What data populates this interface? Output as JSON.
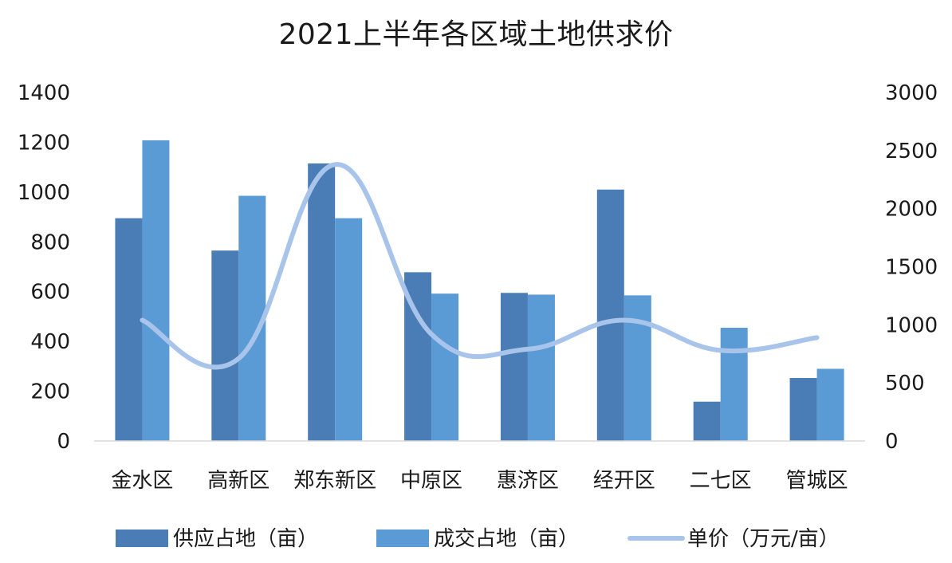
{
  "chart_data": {
    "type": "bar",
    "title": "2021上半年各区域土地供求价",
    "categories": [
      "金水区",
      "高新区",
      "郑东新区",
      "中原区",
      "惠济区",
      "经开区",
      "二七区",
      "管城区"
    ],
    "series": [
      {
        "name": "供应占地（亩）",
        "type": "bar",
        "axis": "left",
        "color": "#4a7db5",
        "values": [
          895,
          765,
          1115,
          678,
          595,
          1010,
          158,
          253
        ]
      },
      {
        "name": "成交占地（亩）",
        "type": "bar",
        "axis": "left",
        "color": "#5b9bd5",
        "values": [
          1208,
          985,
          895,
          592,
          588,
          585,
          455,
          290
        ]
      },
      {
        "name": "单价（万元/亩）",
        "type": "line",
        "axis": "right",
        "color": "#a9c4ea",
        "smooth": true,
        "values": [
          1040,
          710,
          2380,
          920,
          790,
          1040,
          780,
          890
        ]
      }
    ],
    "y_left": {
      "min": 0,
      "max": 1400,
      "ticks": [
        0,
        200,
        400,
        600,
        800,
        1000,
        1200,
        1400
      ]
    },
    "y_right": {
      "min": 0,
      "max": 3000,
      "ticks": [
        0,
        500,
        1000,
        1500,
        2000,
        2500,
        3000
      ]
    },
    "legend_position": "bottom",
    "grid": false
  }
}
